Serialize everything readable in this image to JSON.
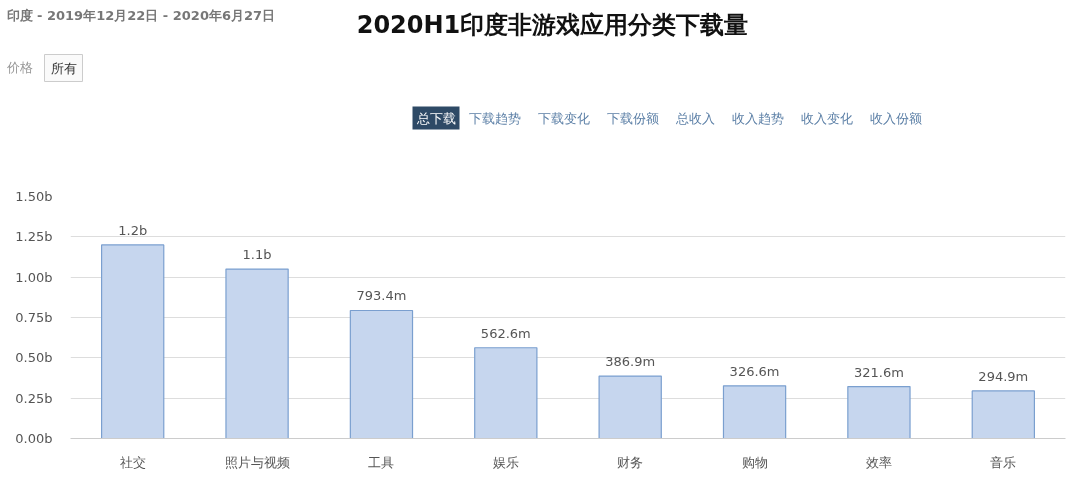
{
  "chart_data": {
    "type": "bar",
    "title": "2020H1印度非游戏应用分类下载量",
    "subtitle": "印度 - 2019年12月22日 - 2020年6月27日",
    "annotations": [
      "价格",
      "所有",
      "总下载",
      "下载趋势",
      "下载变化",
      "下载份额",
      "总收入",
      "收入趋势",
      "收入变化",
      "收入份额"
    ],
    "categories": [
      "社交",
      "照片与视频",
      "工具",
      "娱乐",
      "财务",
      "购物",
      "效率",
      "音乐"
    ],
    "values": [
      1200000000,
      1050000000,
      793400000,
      562600000,
      386900000,
      326600000,
      321600000,
      294900000
    ],
    "value_labels": [
      "1.2b",
      "1.1b",
      "793.4m",
      "562.6m",
      "386.9m",
      "326.6m",
      "321.6m",
      "294.9m"
    ],
    "color": "#c6d6ee",
    "ylim": [
      0,
      1500000000
    ],
    "yticks": [
      {
        "value": 0,
        "label": "0.00b"
      },
      {
        "value": 250000000,
        "label": "0.25b"
      },
      {
        "value": 500000000,
        "label": "0.50b"
      },
      {
        "value": 750000000,
        "label": "0.75b"
      },
      {
        "value": 1000000000,
        "label": "1.00b"
      },
      {
        "value": 1250000000,
        "label": "1.25b"
      },
      {
        "value": 1500000000,
        "label": "1.50b"
      }
    ],
    "grid": "y"
  }
}
